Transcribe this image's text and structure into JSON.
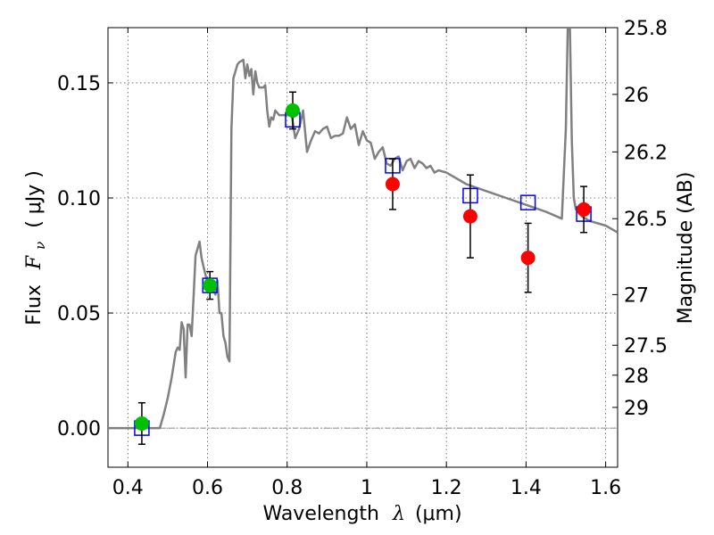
{
  "chart_data": {
    "type": "scatter",
    "title": "",
    "xlabel": "Wavelength",
    "xlabel_symbol": "λ",
    "xlabel_unit": "(μm)",
    "ylabel": "Flux",
    "ylabel_symbol": "F",
    "ylabel_subscript": "ν",
    "ylabel_unit": "( μJy )",
    "y2label": "Magnitude (AB)",
    "xlim": [
      0.35,
      1.63
    ],
    "ylim": [
      -0.017,
      0.174
    ],
    "xticks": [
      0.4,
      0.6,
      0.8,
      1.0,
      1.2,
      1.4,
      1.6
    ],
    "xtick_labels": [
      "0.4",
      "0.6",
      "0.8",
      "1",
      "1.2",
      "1.4",
      "1.6"
    ],
    "yticks": [
      0.0,
      0.05,
      0.1,
      0.15
    ],
    "ytick_labels": [
      "0.00",
      "0.05",
      "0.10",
      "0.15"
    ],
    "y2ticks": [
      {
        "label": "25.8",
        "flux": 0.174
      },
      {
        "label": "26",
        "flux": 0.145
      },
      {
        "label": "26.2",
        "flux": 0.12
      },
      {
        "label": "26.5",
        "flux": 0.091
      },
      {
        "label": "27",
        "flux": 0.058
      },
      {
        "label": "27.5",
        "flux": 0.036
      },
      {
        "label": "28",
        "flux": 0.023
      },
      {
        "label": "29",
        "flux": 0.009
      }
    ],
    "grid": true,
    "zero_line": true,
    "series": [
      {
        "name": "model spectrum",
        "kind": "line",
        "color": "#808080",
        "x": [
          0.35,
          0.48,
          0.49,
          0.5,
          0.51,
          0.52,
          0.525,
          0.53,
          0.535,
          0.54,
          0.545,
          0.55,
          0.555,
          0.56,
          0.565,
          0.57,
          0.58,
          0.585,
          0.59,
          0.6,
          0.61,
          0.62,
          0.625,
          0.63,
          0.635,
          0.64,
          0.645,
          0.65,
          0.655,
          0.66,
          0.665,
          0.67,
          0.675,
          0.68,
          0.69,
          0.695,
          0.7,
          0.705,
          0.71,
          0.715,
          0.72,
          0.725,
          0.73,
          0.74,
          0.745,
          0.75,
          0.755,
          0.76,
          0.765,
          0.77,
          0.775,
          0.78,
          0.8,
          0.81,
          0.82,
          0.83,
          0.84,
          0.85,
          0.86,
          0.87,
          0.88,
          0.89,
          0.9,
          0.91,
          0.92,
          0.93,
          0.94,
          0.95,
          0.96,
          0.97,
          0.98,
          0.99,
          1.0,
          1.01,
          1.02,
          1.03,
          1.04,
          1.05,
          1.06,
          1.07,
          1.08,
          1.09,
          1.1,
          1.11,
          1.12,
          1.13,
          1.14,
          1.15,
          1.16,
          1.17,
          1.18,
          1.2,
          1.25,
          1.3,
          1.35,
          1.4,
          1.45,
          1.49,
          1.5,
          1.505,
          1.51,
          1.515,
          1.52,
          1.525,
          1.53,
          1.54,
          1.56,
          1.6,
          1.63
        ],
        "y": [
          0.0,
          0.0,
          0.006,
          0.013,
          0.022,
          0.033,
          0.035,
          0.034,
          0.046,
          0.043,
          0.022,
          0.045,
          0.045,
          0.04,
          0.057,
          0.075,
          0.081,
          0.074,
          0.07,
          0.063,
          0.062,
          0.058,
          0.064,
          0.05,
          0.05,
          0.04,
          0.037,
          0.031,
          0.029,
          0.13,
          0.152,
          0.155,
          0.158,
          0.159,
          0.16,
          0.152,
          0.158,
          0.153,
          0.156,
          0.145,
          0.155,
          0.15,
          0.148,
          0.148,
          0.149,
          0.138,
          0.131,
          0.135,
          0.134,
          0.138,
          0.137,
          0.136,
          0.136,
          0.138,
          0.126,
          0.13,
          0.138,
          0.12,
          0.125,
          0.129,
          0.128,
          0.13,
          0.131,
          0.126,
          0.127,
          0.127,
          0.128,
          0.135,
          0.13,
          0.132,
          0.123,
          0.129,
          0.125,
          0.124,
          0.117,
          0.12,
          0.122,
          0.115,
          0.114,
          0.117,
          0.118,
          0.112,
          0.116,
          0.117,
          0.113,
          0.116,
          0.115,
          0.113,
          0.114,
          0.111,
          0.112,
          0.111,
          0.106,
          0.103,
          0.1,
          0.097,
          0.094,
          0.091,
          0.13,
          0.175,
          0.175,
          0.125,
          0.1,
          0.095,
          0.095,
          0.092,
          0.09,
          0.088,
          0.085
        ]
      },
      {
        "name": "model photometry",
        "kind": "open-square",
        "color": "#0000ff",
        "x": [
          0.435,
          0.606,
          0.814,
          1.065,
          1.26,
          1.405,
          1.545
        ],
        "y": [
          0.0,
          0.062,
          0.134,
          0.114,
          0.101,
          0.098,
          0.093
        ]
      },
      {
        "name": "observed photometry (green)",
        "kind": "filled-circle",
        "color": "#00c000",
        "x": [
          0.435,
          0.606,
          0.814
        ],
        "y": [
          0.002,
          0.062,
          0.138
        ],
        "yerr": [
          0.009,
          0.006,
          0.008
        ]
      },
      {
        "name": "observed photometry (red)",
        "kind": "filled-circle",
        "color": "#ff0000",
        "x": [
          1.065,
          1.26,
          1.405,
          1.545
        ],
        "y": [
          0.106,
          0.092,
          0.074,
          0.095
        ],
        "yerr": [
          0.011,
          0.018,
          0.015,
          0.01
        ]
      }
    ]
  }
}
